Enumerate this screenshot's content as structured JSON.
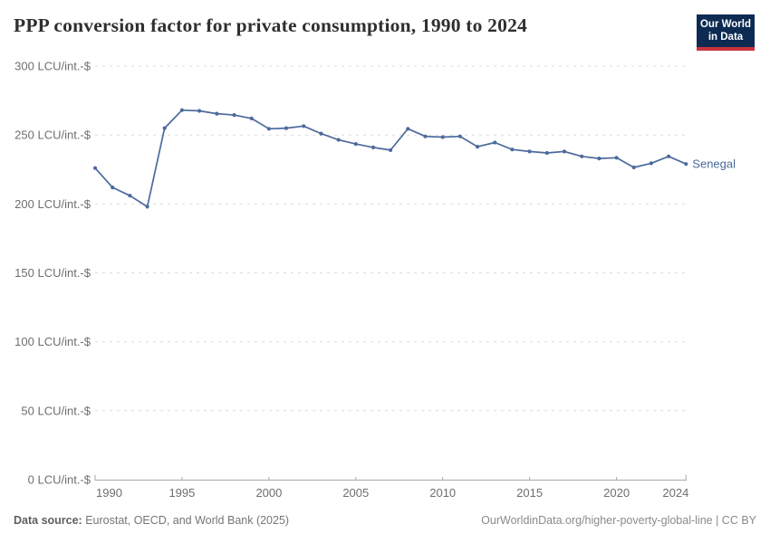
{
  "header": {
    "title": "PPP conversion factor for private consumption, 1990 to 2024",
    "logo": {
      "line1": "Our World",
      "line2": "in Data"
    }
  },
  "footer": {
    "datasource_label": "Data source:",
    "datasource_value": " Eurostat, OECD, and World Bank (2025)",
    "credit": "OurWorldinData.org/higher-poverty-global-line | CC BY"
  },
  "colors": {
    "series_blue": "#4c6a9c",
    "logo_navy": "#0c2a52",
    "logo_red": "#ca323c",
    "gridline": "#dcdcdc",
    "axis": "#a9a9a9",
    "tick_text": "#6e6e6e"
  },
  "chart_data": {
    "type": "line",
    "title": "PPP conversion factor for private consumption, 1990 to 2024",
    "xlabel": "",
    "ylabel": "",
    "y_unit": "LCU/int.-$",
    "ylim": [
      0,
      300
    ],
    "xlim": [
      1990,
      2024
    ],
    "yticks": [
      0,
      50,
      100,
      150,
      200,
      250,
      300
    ],
    "xticks": [
      1990,
      1995,
      2000,
      2005,
      2010,
      2015,
      2020,
      2024
    ],
    "grid": "horizontal-dashed",
    "legend_position": "end-of-line-label",
    "x": [
      1990,
      1991,
      1992,
      1993,
      1994,
      1995,
      1996,
      1997,
      1998,
      1999,
      2000,
      2001,
      2002,
      2003,
      2004,
      2005,
      2006,
      2007,
      2008,
      2009,
      2010,
      2011,
      2012,
      2013,
      2014,
      2015,
      2016,
      2017,
      2018,
      2019,
      2020,
      2021,
      2022,
      2023,
      2024
    ],
    "series": [
      {
        "name": "Senegal",
        "color": "#4c6a9c",
        "values": [
          226,
          212,
          206,
          198,
          255,
          268,
          267.5,
          265.5,
          264.5,
          262,
          254.5,
          255,
          256.5,
          251,
          246.5,
          243.5,
          241,
          239,
          254.5,
          249,
          248.5,
          249,
          241.5,
          244.5,
          239.5,
          238,
          237,
          238,
          234.5,
          233,
          233.5,
          226.5,
          229.5,
          234.5,
          229
        ]
      }
    ]
  }
}
